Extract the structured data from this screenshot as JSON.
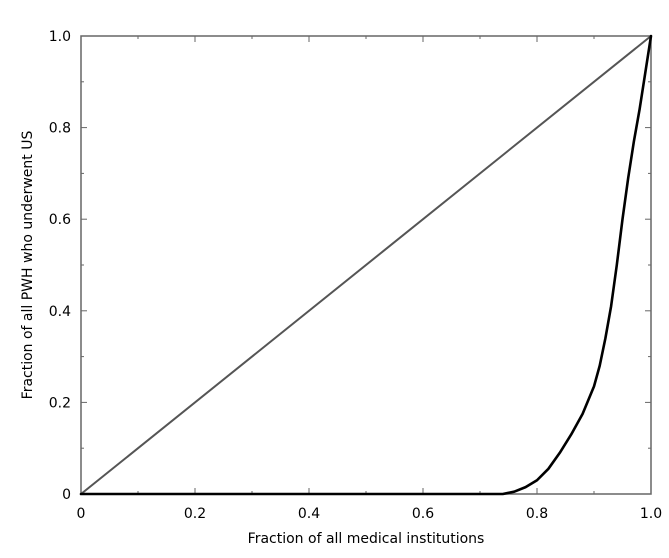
{
  "chart_data": {
    "type": "line",
    "title": "",
    "xlabel": "Fraction of all medical institutions",
    "ylabel": "Fraction of all PWH who underwent US",
    "xlim": [
      0,
      1
    ],
    "ylim": [
      0,
      1
    ],
    "grid": false,
    "xticks": [
      0,
      0.2,
      0.4,
      0.6,
      0.8,
      1.0
    ],
    "xtick_labels": [
      "0",
      "0.2",
      "0.4",
      "0.6",
      "0.8",
      "1.0"
    ],
    "yticks": [
      0,
      0.2,
      0.4,
      0.6,
      0.8,
      1.0
    ],
    "ytick_labels": [
      "0",
      "0.2",
      "0.4",
      "0.6",
      "0.8",
      "1.0"
    ],
    "series": [
      {
        "color": "#555555",
        "x": [
          0,
          1
        ],
        "y": [
          0,
          1
        ]
      },
      {
        "color": "#000000",
        "x": [
          0,
          0.5,
          0.74,
          0.76,
          0.78,
          0.8,
          0.82,
          0.84,
          0.86,
          0.88,
          0.9,
          0.91,
          0.92,
          0.93,
          0.94,
          0.95,
          0.96,
          0.97,
          0.98,
          0.99,
          1.0
        ],
        "y": [
          0,
          0,
          0,
          0.005,
          0.015,
          0.03,
          0.055,
          0.09,
          0.13,
          0.175,
          0.235,
          0.28,
          0.34,
          0.41,
          0.5,
          0.6,
          0.69,
          0.77,
          0.84,
          0.92,
          1.0
        ]
      }
    ]
  }
}
